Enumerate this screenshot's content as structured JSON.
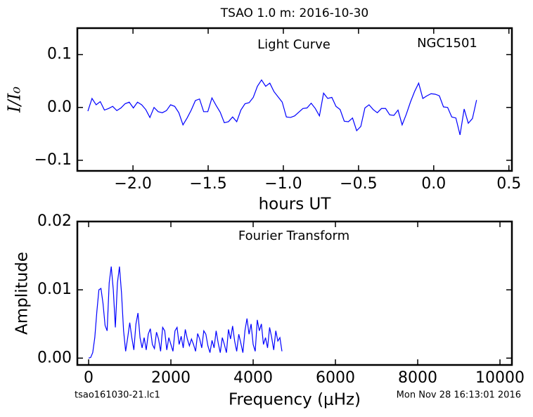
{
  "title": "TSAO 1.0 m:  2016-10-30",
  "footer_left": "tsao161030-21.lc1",
  "footer_right": "Mon Nov 28 16:13:01 2016",
  "chart_data": [
    {
      "type": "line",
      "annotations": [
        "Light Curve",
        "NGC1501"
      ],
      "xlabel": "hours UT",
      "ylabel": "I/I₀",
      "xlim": [
        -2.37,
        0.52
      ],
      "ylim": [
        -0.12,
        0.15
      ],
      "xticks": [
        {
          "value": -2,
          "label": "−2.0"
        },
        {
          "value": -1.5,
          "label": "−1.5"
        },
        {
          "value": -1,
          "label": "−1.0"
        },
        {
          "value": -0.5,
          "label": "−0.5"
        },
        {
          "value": 0,
          "label": "0.0"
        },
        0.5
      ],
      "yticks": [
        {
          "value": -0.1,
          "label": "−0.1"
        },
        {
          "value": 0,
          "label": "0.0"
        },
        0.1
      ],
      "x": [
        -2.3,
        -2.2725,
        -2.245,
        -2.2175,
        -2.19,
        -2.1625,
        -2.135,
        -2.1075,
        -2.08,
        -2.0525,
        -2.025,
        -1.9975,
        -1.97,
        -1.9425,
        -1.915,
        -1.8875,
        -1.86,
        -1.8325,
        -1.805,
        -1.7775,
        -1.75,
        -1.7225,
        -1.695,
        -1.6675,
        -1.64,
        -1.6125,
        -1.585,
        -1.5575,
        -1.53,
        -1.5025,
        -1.475,
        -1.4475,
        -1.42,
        -1.3925,
        -1.365,
        -1.3375,
        -1.31,
        -1.2825,
        -1.255,
        -1.2275,
        -1.2,
        -1.1725,
        -1.145,
        -1.1175,
        -1.09,
        -1.0625,
        -1.035,
        -1.0075,
        -0.98,
        -0.9525,
        -0.925,
        -0.8975,
        -0.87,
        -0.8425,
        -0.815,
        -0.7875,
        -0.76,
        -0.7325,
        -0.705,
        -0.6775,
        -0.65,
        -0.6225,
        -0.595,
        -0.5675,
        -0.54,
        -0.5125,
        -0.485,
        -0.4575,
        -0.43,
        -0.4025,
        -0.375,
        -0.3475,
        -0.32,
        -0.2925,
        -0.265,
        -0.2375,
        -0.21,
        -0.1825,
        -0.155,
        -0.1275,
        -0.1,
        -0.0725,
        -0.045,
        -0.0175,
        0.01,
        0.0375,
        0.065,
        0.0925,
        0.12,
        0.1475,
        0.175,
        0.2025,
        0.23,
        0.2575,
        0.285
      ],
      "series": [
        {
          "color": "#0000ff",
          "values": [
            -0.007,
            0.017,
            0.005,
            0.011,
            -0.005,
            -0.002,
            0.002,
            -0.006,
            -0.001,
            0.007,
            0.01,
            -0.001,
            0.01,
            0.005,
            -0.004,
            -0.019,
            0.0,
            -0.008,
            -0.01,
            -0.006,
            0.005,
            0.002,
            -0.01,
            -0.033,
            -0.02,
            -0.005,
            0.013,
            0.016,
            -0.008,
            -0.008,
            0.018,
            0.004,
            -0.009,
            -0.029,
            -0.027,
            -0.018,
            -0.027,
            -0.005,
            0.007,
            0.009,
            0.019,
            0.04,
            0.052,
            0.04,
            0.046,
            0.03,
            0.02,
            0.01,
            -0.018,
            -0.019,
            -0.016,
            -0.009,
            -0.002,
            -0.001,
            0.008,
            -0.002,
            -0.016,
            0.027,
            0.017,
            0.019,
            0.002,
            -0.004,
            -0.026,
            -0.027,
            -0.02,
            -0.044,
            -0.036,
            -0.001,
            0.005,
            -0.004,
            -0.01,
            -0.002,
            -0.002,
            -0.014,
            -0.015,
            -0.005,
            -0.033,
            -0.013,
            0.01,
            0.03,
            0.046,
            0.017,
            0.022,
            0.026,
            0.025,
            0.022,
            0.001,
            0.0,
            -0.018,
            -0.02,
            -0.052,
            -0.003,
            -0.03,
            -0.021,
            0.014
          ]
        }
      ]
    },
    {
      "type": "line",
      "annotations": [
        "Fourier Transform"
      ],
      "xlabel": "Frequency (μHz)",
      "ylabel": "Amplitude",
      "xlim": [
        -274,
        10290
      ],
      "ylim": [
        -0.001,
        0.02
      ],
      "xticks": [
        0,
        2000,
        4000,
        6000,
        8000,
        10000
      ],
      "yticks": [
        {
          "value": 0,
          "label": "0.00"
        },
        0.01,
        0.02
      ],
      "x": [
        0,
        50,
        100,
        150,
        200,
        250,
        300,
        350,
        400,
        450,
        500,
        550,
        600,
        650,
        700,
        750,
        800,
        850,
        900,
        950,
        1000,
        1050,
        1100,
        1150,
        1200,
        1250,
        1300,
        1350,
        1400,
        1450,
        1500,
        1550,
        1600,
        1650,
        1700,
        1750,
        1800,
        1850,
        1900,
        1950,
        2000,
        2050,
        2100,
        2150,
        2200,
        2250,
        2300,
        2350,
        2400,
        2450,
        2500,
        2550,
        2600,
        2650,
        2700,
        2750,
        2800,
        2850,
        2900,
        2950,
        3000,
        3050,
        3100,
        3150,
        3200,
        3250,
        3300,
        3350,
        3400,
        3450,
        3500,
        3550,
        3600,
        3650,
        3700,
        3750,
        3800,
        3850,
        3900,
        3950,
        4000,
        4050,
        4100,
        4150,
        4200,
        4250,
        4300,
        4350,
        4400,
        4450,
        4500,
        4550,
        4600,
        4650,
        4700
      ],
      "series": [
        {
          "color": "#0000ff",
          "values": [
            0.0,
            0.0001,
            0.0008,
            0.003,
            0.0068,
            0.01,
            0.0102,
            0.008,
            0.0048,
            0.004,
            0.011,
            0.0134,
            0.01,
            0.0045,
            0.011,
            0.0134,
            0.0095,
            0.004,
            0.001,
            0.003,
            0.0052,
            0.003,
            0.0012,
            0.005,
            0.0066,
            0.003,
            0.0015,
            0.003,
            0.0012,
            0.0035,
            0.0043,
            0.002,
            0.0014,
            0.0038,
            0.0028,
            0.001,
            0.0045,
            0.004,
            0.0012,
            0.003,
            0.002,
            0.001,
            0.004,
            0.0045,
            0.002,
            0.0032,
            0.0015,
            0.0042,
            0.0028,
            0.0018,
            0.0028,
            0.002,
            0.001,
            0.0036,
            0.0028,
            0.0015,
            0.004,
            0.0035,
            0.0018,
            0.0008,
            0.0026,
            0.0015,
            0.004,
            0.0022,
            0.0008,
            0.003,
            0.002,
            0.0008,
            0.0042,
            0.0028,
            0.0047,
            0.0025,
            0.001,
            0.0035,
            0.0022,
            0.0008,
            0.004,
            0.0058,
            0.0035,
            0.005,
            0.002,
            0.001,
            0.0056,
            0.004,
            0.005,
            0.002,
            0.003,
            0.0015,
            0.0045,
            0.003,
            0.0012,
            0.004,
            0.0025,
            0.003,
            0.001
          ]
        }
      ]
    }
  ]
}
